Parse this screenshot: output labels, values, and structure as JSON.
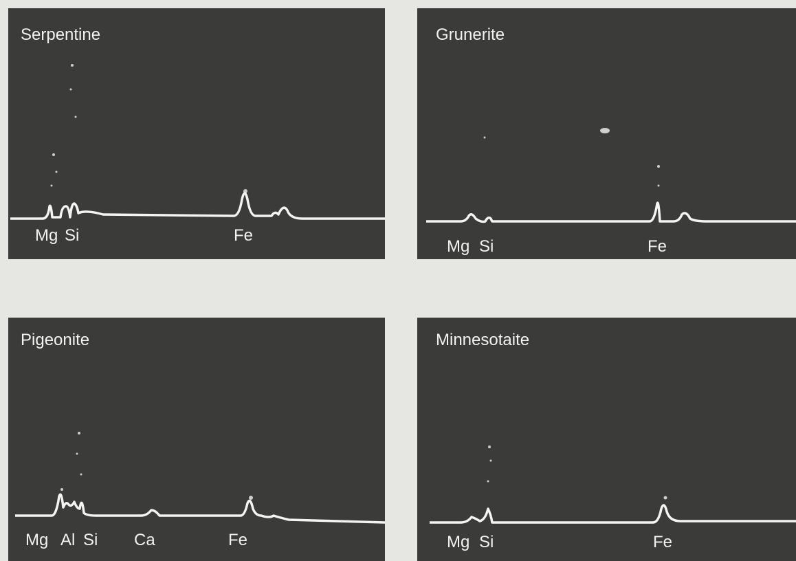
{
  "panels": [
    {
      "title": "Serpentine",
      "labels": [
        "Mg",
        "Si",
        "Fe"
      ]
    },
    {
      "title": "Grunerite",
      "labels": [
        "Mg",
        "Si",
        "Fe"
      ]
    },
    {
      "title": "Pigeonite",
      "labels": [
        "Mg",
        "Al",
        "Si",
        "Ca",
        "Fe"
      ]
    },
    {
      "title": "Minnesotaite",
      "labels": [
        "Mg",
        "Si",
        "Fe"
      ]
    }
  ]
}
